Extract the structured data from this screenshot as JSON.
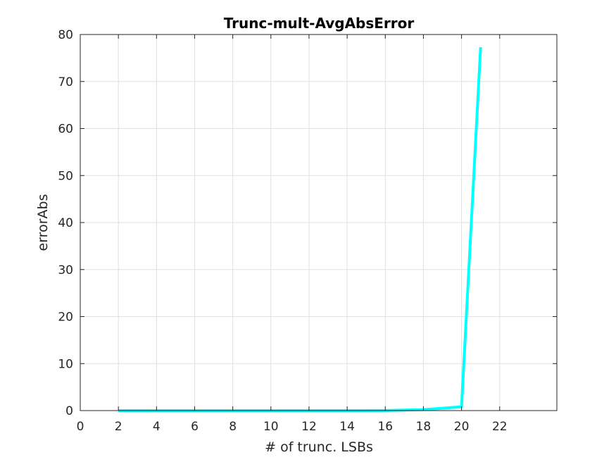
{
  "chart_data": {
    "type": "line",
    "title": "Trunc-mult-AvgAbsError",
    "xlabel": "# of trunc. LSBs",
    "ylabel": "errorAbs",
    "xlim": [
      0,
      25
    ],
    "ylim": [
      0,
      80
    ],
    "xticks": [
      0,
      2,
      4,
      6,
      8,
      10,
      12,
      14,
      16,
      18,
      20,
      22
    ],
    "yticks": [
      0,
      10,
      20,
      30,
      40,
      50,
      60,
      70,
      80
    ],
    "grid": true,
    "legend": "none",
    "series": [
      {
        "color": "#00ffff",
        "x": [
          2,
          4,
          6,
          8,
          10,
          12,
          14,
          16,
          18,
          20,
          21
        ],
        "y": [
          0,
          0,
          0,
          0,
          0,
          0,
          0,
          0.02,
          0.2,
          0.8,
          77.3
        ]
      }
    ]
  }
}
